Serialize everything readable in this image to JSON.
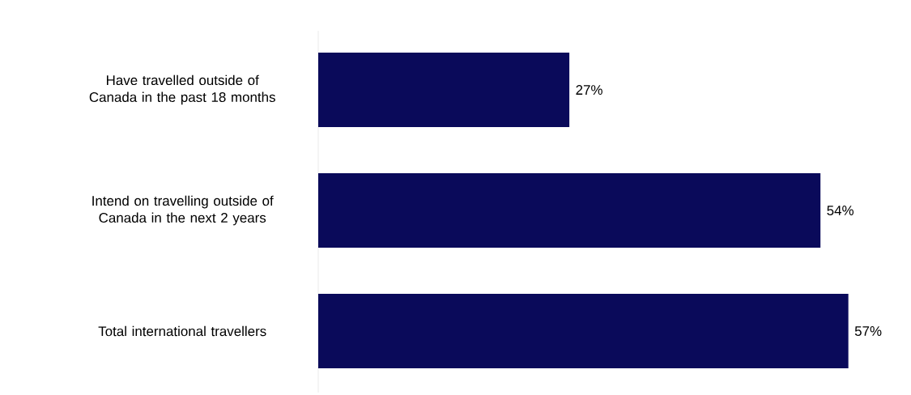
{
  "chart_data": {
    "type": "bar",
    "orientation": "horizontal",
    "categories": [
      "Have travelled outside of Canada in the past 18 months",
      "Intend on travelling outside of Canada in the next 2 years",
      "Total international travellers"
    ],
    "values": [
      27,
      54,
      57
    ],
    "value_labels": [
      "27%",
      "54%",
      "57%"
    ],
    "color": "#0a0a5a"
  }
}
